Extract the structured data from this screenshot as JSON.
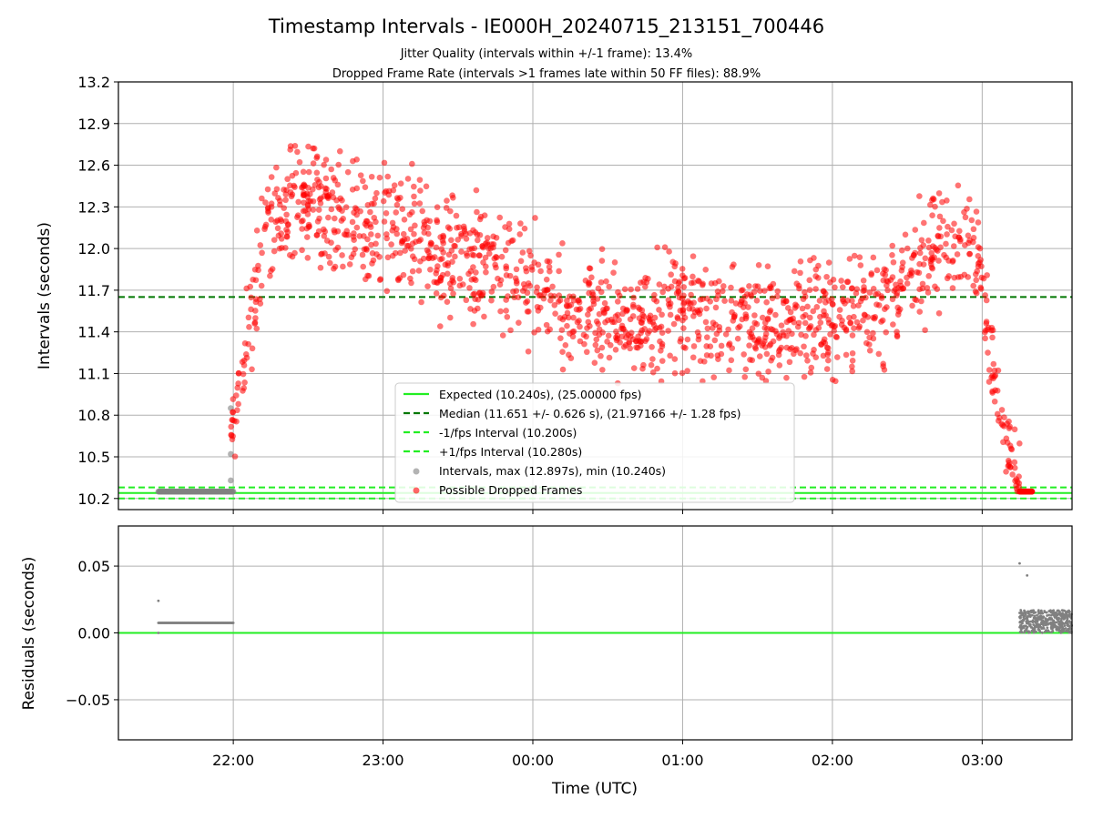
{
  "title": "Timestamp Intervals - IE000H_20240715_213151_700446",
  "subtitle_lines": [
    "Jitter Quality (intervals within +/-1 frame): 13.4%",
    "Dropped Frame Rate (intervals >1 frames late within 50 FF files): 88.9%"
  ],
  "colors": {
    "expected": "#22ee22",
    "median": "#007700",
    "fps_bounds": "#22ee22",
    "intervals": "#808080",
    "dropped": "#ff0000",
    "grid": "#b0b0b0"
  },
  "chart_data": [
    {
      "type": "scatter",
      "panel": "top",
      "ylabel": "Intervals (seconds)",
      "xlabel": "",
      "ylim": [
        10.12,
        13.2
      ],
      "xlim_hours": [
        -2.767,
        3.6
      ],
      "y_ticks": [
        "10.2",
        "10.5",
        "10.8",
        "11.1",
        "11.4",
        "11.7",
        "12.0",
        "12.3",
        "12.6",
        "12.9",
        "13.2"
      ],
      "grid": true,
      "legend_position": "center-bottom",
      "reference_lines": {
        "expected": 10.24,
        "median": 11.651,
        "minus_fps": 10.2,
        "plus_fps": 10.28
      },
      "legend": [
        "Expected (10.240s), (25.00000 fps)",
        "Median (11.651 +/- 0.626 s), (21.97166 +/- 1.28 fps)",
        "-1/fps Interval (10.200s)",
        "+1/fps Interval (10.280s)",
        "Intervals, max (12.897s), min (10.240s)",
        "Possible Dropped Frames"
      ],
      "intervals_series": {
        "start": "21:30",
        "end": "22:00",
        "level": 10.25,
        "extra_points": [
          {
            "time": "21:59",
            "value": 10.85
          },
          {
            "time": "21:59",
            "value": 10.52
          },
          {
            "time": "21:59",
            "value": 10.33
          }
        ]
      },
      "dropped_profile": [
        {
          "time": "21:59",
          "value": 10.6
        },
        {
          "time": "22:05",
          "value": 11.3
        },
        {
          "time": "22:12",
          "value": 12.0
        },
        {
          "time": "22:20",
          "value": 12.3
        },
        {
          "time": "22:30",
          "value": 12.35
        },
        {
          "time": "22:40",
          "value": 12.25
        },
        {
          "time": "23:00",
          "value": 12.15
        },
        {
          "time": "23:20",
          "value": 12.0
        },
        {
          "time": "23:40",
          "value": 11.9
        },
        {
          "time": "00:00",
          "value": 11.75
        },
        {
          "time": "00:20",
          "value": 11.55
        },
        {
          "time": "00:40",
          "value": 11.45
        },
        {
          "time": "01:00",
          "value": 11.55
        },
        {
          "time": "01:20",
          "value": 11.5
        },
        {
          "time": "01:40",
          "value": 11.45
        },
        {
          "time": "02:00",
          "value": 11.5
        },
        {
          "time": "02:20",
          "value": 11.6
        },
        {
          "time": "02:40",
          "value": 12.0
        },
        {
          "time": "02:55",
          "value": 12.1
        },
        {
          "time": "03:00",
          "value": 11.8
        },
        {
          "time": "03:05",
          "value": 11.0
        },
        {
          "time": "03:10",
          "value": 10.6
        },
        {
          "time": "03:15",
          "value": 10.25
        }
      ],
      "dropped_spread": 0.2,
      "dropped_count": 1500,
      "dropped_tail": {
        "start": "03:15",
        "end": "03:20",
        "level": 10.25
      }
    },
    {
      "type": "scatter",
      "panel": "bottom",
      "ylabel": "Residuals (seconds)",
      "xlabel": "Time (UTC)",
      "ylim": [
        -0.08,
        0.08
      ],
      "y_ticks": [
        "−0.05",
        "0.00",
        "0.05"
      ],
      "x_ticks": [
        "22:00",
        "23:00",
        "00:00",
        "01:00",
        "02:00",
        "03:00"
      ],
      "grid": true,
      "zero_line": 0.0,
      "early_cluster": {
        "start": "21:30",
        "end": "22:00",
        "level": 0.0075,
        "outliers": [
          {
            "time": "21:30",
            "value": 0.024
          },
          {
            "time": "21:30",
            "value": 0.0
          }
        ]
      },
      "late_cluster": {
        "start": "03:15",
        "end": "03:36",
        "min": 0.0,
        "max": 0.017,
        "outliers": [
          {
            "time": "03:15",
            "value": 0.052
          },
          {
            "time": "03:18",
            "value": 0.043
          }
        ]
      }
    }
  ]
}
